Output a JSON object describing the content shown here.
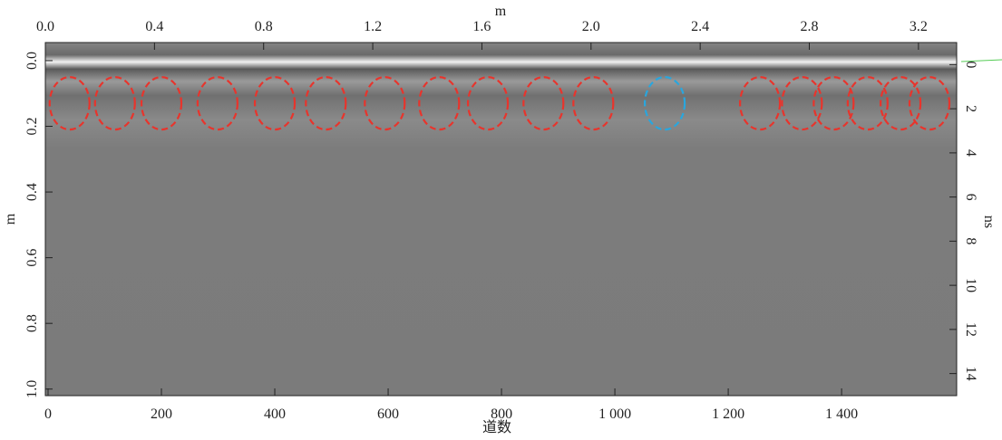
{
  "chart_data": {
    "type": "radargram",
    "x2_label": "m",
    "x_label": "道数",
    "y_label": "m",
    "y2_label": "ns",
    "xlim": [
      -4.8,
      1603
    ],
    "xticks": [
      0,
      200,
      400,
      600,
      800,
      {
        "value": 1000,
        "label": "1 000"
      },
      {
        "value": 1200,
        "label": "1 200"
      },
      {
        "value": 1400,
        "label": "1 400"
      }
    ],
    "x2lim": [
      0,
      3.34
    ],
    "x2ticks": [
      {
        "value": 0,
        "label": "0.0"
      },
      0.4,
      0.8,
      1.2,
      1.6,
      {
        "value": 2,
        "label": "2.0"
      },
      2.4,
      2.8,
      3.2
    ],
    "ylim": [
      -0.055,
      1.02
    ],
    "yticks": [
      {
        "value": 0,
        "label": "0.0"
      },
      0.2,
      0.4,
      0.6,
      0.8,
      {
        "value": 1,
        "label": "1.0"
      }
    ],
    "y2lim": [
      -1,
      15
    ],
    "y2ticks": [
      0,
      2,
      4,
      6,
      8,
      10,
      12,
      14
    ],
    "markers": {
      "x": [
        38,
        118,
        200,
        299,
        400,
        490,
        594,
        690,
        776,
        874,
        962,
        1088,
        1256,
        1330,
        1386,
        1446,
        1504,
        1555
      ],
      "y": [
        0.13,
        0.13,
        0.13,
        0.13,
        0.13,
        0.13,
        0.13,
        0.13,
        0.13,
        0.13,
        0.13,
        0.13,
        0.13,
        0.13,
        0.13,
        0.13,
        0.13,
        0.13
      ],
      "color": [
        "#e8342c",
        "#e8342c",
        "#e8342c",
        "#e8342c",
        "#e8342c",
        "#e8342c",
        "#e8342c",
        "#e8342c",
        "#e8342c",
        "#e8342c",
        "#e8342c",
        "#29a6de",
        "#e8342c",
        "#e8342c",
        "#e8342c",
        "#e8342c",
        "#e8342c",
        "#e8342c"
      ]
    }
  }
}
